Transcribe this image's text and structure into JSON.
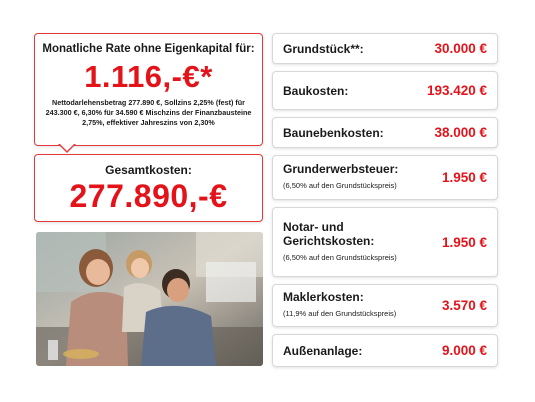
{
  "rate": {
    "title": "Monatliche Rate ohne Eigenkapital für:",
    "amount": "1.116,-€*",
    "note": "Nettodarlehensbetrag 277.890 €, Sollzins 2,25% (fest) für 243.300 €, 6,30% für 34.590 € Mischzins der Finanzbausteine 2,75%, effektiver Jahreszins von 2,30%"
  },
  "total": {
    "title": "Gesamtkosten:",
    "amount": "277.890,-€"
  },
  "costs": [
    {
      "label": "Grundstück**:",
      "sub": "",
      "value": "30.000 €"
    },
    {
      "label": "Baukosten:",
      "sub": "",
      "value": "193.420 €"
    },
    {
      "label": "Baunebenkosten:",
      "sub": "",
      "value": "38.000 €"
    },
    {
      "label": "Grunderwerbsteuer:",
      "sub": "(6,50% auf den Grundstückspreis)",
      "value": "1.950 €"
    },
    {
      "label": "Notar- und Gerichtskosten:",
      "sub": "(6,50% auf den Grundstückspreis)",
      "value": "1.950 €"
    },
    {
      "label": "Maklerkosten:",
      "sub": "(11,9% auf den Grundstückspreis)",
      "value": "3.570 €"
    },
    {
      "label": "Außenanlage:",
      "sub": "",
      "value": "9.000 €"
    }
  ],
  "colors": {
    "accent": "#e4131a",
    "border_accent": "#e23a3a"
  }
}
